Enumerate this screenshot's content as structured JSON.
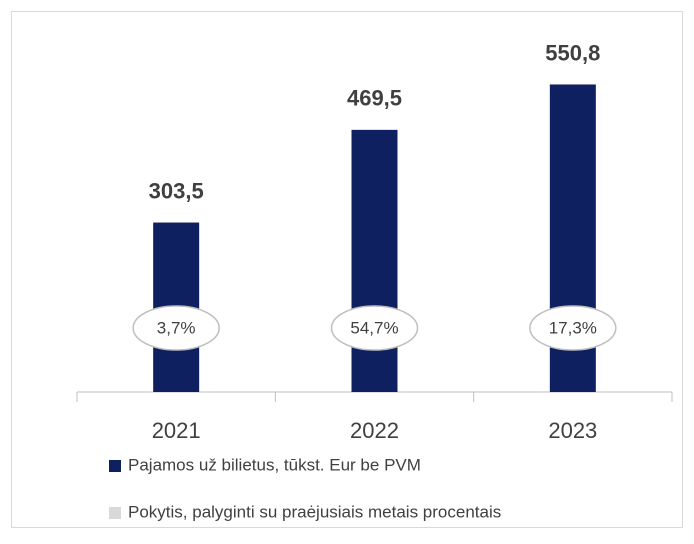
{
  "chart_data": {
    "type": "bar",
    "categories": [
      "2021",
      "2022",
      "2023"
    ],
    "series": [
      {
        "name": "Pajamos už bilietus, tūkst. Eur be PVM",
        "color": "#0f2060",
        "values": [
          303.5,
          469.5,
          550.8
        ],
        "value_labels": [
          "303,5",
          "469,5",
          "550,8"
        ]
      },
      {
        "name": "Pokytis, palyginti su praėjusiais metais procentais",
        "color": "#d9d9d9",
        "values": [
          3.7,
          54.7,
          17.3
        ],
        "value_labels": [
          "3,7%",
          "54,7%",
          "17,3%"
        ]
      }
    ],
    "ylim": [
      0,
      600
    ]
  }
}
